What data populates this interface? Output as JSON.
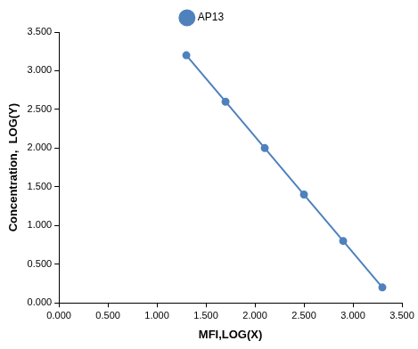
{
  "chart_data": {
    "type": "line",
    "x_label": "MFI,LOG(X)",
    "y_label": "Concentration,  LOG(Y)",
    "series": [
      {
        "name": "AP13",
        "color": "#4f81bd",
        "marker": "circle",
        "line_style": "solid",
        "x": [
          1.3,
          1.7,
          2.1,
          2.5,
          2.9,
          3.3
        ],
        "values": [
          3.2,
          2.6,
          2.0,
          1.4,
          0.8,
          0.2
        ]
      }
    ],
    "xlim": [
      0,
      3.5
    ],
    "xticks": [
      {
        "value": 0,
        "label": "0.000"
      },
      {
        "value": 0.5,
        "label": "0.500"
      },
      {
        "value": 1,
        "label": "1.000"
      },
      {
        "value": 1.5,
        "label": "1.500"
      },
      {
        "value": 2,
        "label": "2.000"
      },
      {
        "value": 2.5,
        "label": "2.500"
      },
      {
        "value": 3,
        "label": "3.000"
      },
      {
        "value": 3.5,
        "label": "3.500"
      }
    ],
    "ylim": [
      0,
      3.5
    ],
    "yticks": [
      {
        "value": 0,
        "label": "0.000"
      },
      {
        "value": 0.5,
        "label": "0.500"
      },
      {
        "value": 1,
        "label": "1.000"
      },
      {
        "value": 1.5,
        "label": "1.500"
      },
      {
        "value": 2,
        "label": "2.000"
      },
      {
        "value": 2.5,
        "label": "2.500"
      },
      {
        "value": 3,
        "label": "3.000"
      },
      {
        "value": 3.5,
        "label": "3.500"
      }
    ],
    "grid": false,
    "legend": "top"
  }
}
